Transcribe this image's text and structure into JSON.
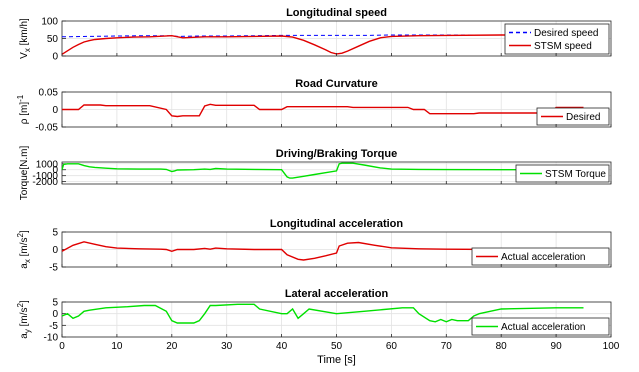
{
  "chart_data": [
    {
      "type": "line",
      "title": "Longitudinal speed",
      "ylabel": "V_x [km/h]",
      "ylabel_parts": {
        "main": "V",
        "sub": "x",
        "unit": " [km/h]"
      },
      "xlim": [
        0,
        100
      ],
      "ylim": [
        0,
        100
      ],
      "yticks": [
        "0",
        "50",
        "100"
      ],
      "grid": true,
      "legend": "bottom-right",
      "series": [
        {
          "name": "Desired speed",
          "color": "#0000ff",
          "style": "dashed",
          "x": [
            0,
            5,
            10,
            15,
            20,
            21,
            25,
            30,
            35,
            40,
            45,
            50,
            55,
            60,
            65,
            70,
            75,
            80,
            85,
            90,
            95
          ],
          "y": [
            55,
            56,
            57,
            58,
            58,
            56,
            57,
            57,
            58,
            59,
            59,
            59,
            59,
            60,
            60,
            60,
            60,
            60,
            60,
            60,
            60
          ]
        },
        {
          "name": "STSM speed",
          "color": "#e00000",
          "style": "solid",
          "x": [
            0,
            1,
            2,
            3,
            4,
            5,
            6,
            8,
            10,
            13,
            16,
            20,
            22,
            26,
            30,
            35,
            40,
            42,
            44,
            46,
            48,
            49,
            50,
            51,
            52,
            54,
            56,
            58,
            60,
            65,
            70,
            80,
            95
          ],
          "y": [
            5,
            15,
            25,
            33,
            40,
            44,
            47,
            50,
            52,
            54,
            55,
            58,
            52,
            55,
            55,
            56,
            57,
            54,
            45,
            32,
            18,
            10,
            6,
            8,
            14,
            28,
            42,
            52,
            56,
            58,
            59,
            60,
            60
          ]
        }
      ]
    },
    {
      "type": "line",
      "title": "Road Curvature",
      "ylabel": "ρ [m^-1]",
      "ylabel_parts": {
        "main": "ρ [m",
        "sup": "-1",
        "unit": "]"
      },
      "xlim": [
        0,
        100
      ],
      "ylim": [
        -0.05,
        0.05
      ],
      "yticks": [
        "-0.05",
        "0",
        "0.05"
      ],
      "grid": true,
      "legend": "bottom-right",
      "series": [
        {
          "name": "Desired",
          "color": "#e00000",
          "style": "solid",
          "x": [
            0,
            3,
            4,
            7,
            8,
            15,
            16,
            19,
            20,
            21,
            22,
            25,
            26,
            27,
            28,
            35,
            36,
            40,
            41,
            52,
            53,
            63,
            64,
            66,
            67,
            75,
            76,
            89,
            90,
            95
          ],
          "y": [
            0,
            0,
            0.013,
            0.013,
            0.011,
            0.011,
            0.011,
            0,
            -0.018,
            -0.02,
            -0.018,
            -0.018,
            0.01,
            0.015,
            0.012,
            0.012,
            0,
            0,
            0.008,
            0.008,
            0.006,
            0.006,
            0,
            0,
            -0.012,
            -0.012,
            -0.01,
            -0.01,
            0.006,
            0.006
          ]
        }
      ]
    },
    {
      "type": "line",
      "title": "Driving/Braking Torque",
      "ylabel": "Torque[N.m]",
      "ylabel_parts": {
        "main": "Torque[N.m]"
      },
      "xlim": [
        0,
        100
      ],
      "ylim": [
        -2400,
        1300
      ],
      "yticks": [
        "-2000",
        "-1000",
        "0",
        "1000"
      ],
      "grid": true,
      "legend": "bottom-right",
      "series": [
        {
          "name": "STSM Torque",
          "color": "#00e000",
          "style": "solid",
          "x": [
            0,
            0.3,
            1,
            3,
            4,
            5,
            6,
            8,
            10,
            14,
            18,
            19,
            20,
            20.5,
            21,
            24,
            26,
            27,
            28,
            30,
            35,
            40,
            41,
            41.5,
            42,
            44,
            46,
            48,
            50,
            50.5,
            51,
            53,
            55,
            58,
            60,
            65,
            70,
            80,
            95
          ],
          "y": [
            0,
            900,
            1000,
            1000,
            700,
            500,
            400,
            250,
            150,
            100,
            100,
            60,
            -300,
            -200,
            -50,
            0,
            100,
            60,
            200,
            100,
            50,
            0,
            -1200,
            -1400,
            -1400,
            -1100,
            -800,
            -500,
            -200,
            1000,
            1100,
            1100,
            800,
            300,
            100,
            50,
            20,
            0,
            0
          ]
        }
      ]
    },
    {
      "type": "line",
      "title": "Longitudinal acceleration",
      "ylabel": "a_x [m/s^2]",
      "ylabel_parts": {
        "main": "a",
        "sub": "x",
        "unit": " [m/s",
        "sup": "2",
        "tail": "]"
      },
      "xlim": [
        0,
        100
      ],
      "ylim": [
        -5,
        5
      ],
      "yticks": [
        "-5",
        "0",
        "5"
      ],
      "grid": true,
      "legend": "bottom-right",
      "series": [
        {
          "name": "Actual acceleration",
          "color": "#e00000",
          "style": "solid",
          "x": [
            0,
            2,
            4,
            6,
            8,
            10,
            14,
            18,
            19,
            20,
            21,
            24,
            26,
            27,
            28,
            30,
            35,
            40,
            41,
            43,
            44,
            46,
            48,
            50,
            50.5,
            52,
            54,
            57,
            60,
            65,
            70,
            80,
            95
          ],
          "y": [
            -0.5,
            1.2,
            2.2,
            1.5,
            0.8,
            0.4,
            0.2,
            0.1,
            0,
            -0.5,
            0,
            0,
            0.3,
            0.1,
            0.4,
            0.2,
            0,
            0,
            -1.5,
            -2.8,
            -3,
            -2.5,
            -1.8,
            -1,
            1,
            1.8,
            2,
            1.2,
            0.5,
            0.2,
            0.1,
            0,
            0
          ]
        }
      ]
    },
    {
      "type": "line",
      "title": "Lateral acceleration",
      "ylabel": "a_y [m/s^2]",
      "ylabel_parts": {
        "main": "a",
        "sub": "y",
        "unit": " [m/s",
        "sup": "2",
        "tail": "]"
      },
      "xlim": [
        0,
        100
      ],
      "ylim": [
        -10,
        5
      ],
      "yticks": [
        "-10",
        "-5",
        "0",
        "5"
      ],
      "grid": true,
      "legend": "bottom-right",
      "xlabel": "Time [s]",
      "xticks": [
        "0",
        "10",
        "20",
        "30",
        "40",
        "50",
        "60",
        "70",
        "80",
        "90",
        "100"
      ],
      "series": [
        {
          "name": "Actual acceleration",
          "color": "#00e000",
          "style": "solid",
          "x": [
            0,
            1,
            2,
            3,
            4,
            5,
            8,
            12,
            15,
            17,
            19,
            20,
            21,
            24,
            25,
            26,
            27,
            28,
            32,
            35,
            36,
            40,
            41,
            42,
            43,
            44,
            45,
            50,
            55,
            62,
            64,
            65,
            67,
            68,
            69,
            70,
            71,
            72,
            74,
            75,
            76,
            80,
            90,
            95
          ],
          "y": [
            -1,
            0,
            -2,
            -1,
            1,
            1.5,
            2.5,
            3,
            3.5,
            3.5,
            1,
            -3,
            -4,
            -4,
            -3,
            0,
            3.5,
            3.5,
            4,
            4,
            2,
            0,
            0,
            2,
            -2,
            0,
            2,
            0,
            1,
            2.5,
            2.5,
            0,
            -3,
            -3.5,
            -2.5,
            -3.5,
            -2.5,
            -3,
            -3,
            -1,
            0,
            2,
            2.5,
            2.5
          ]
        }
      ]
    }
  ]
}
